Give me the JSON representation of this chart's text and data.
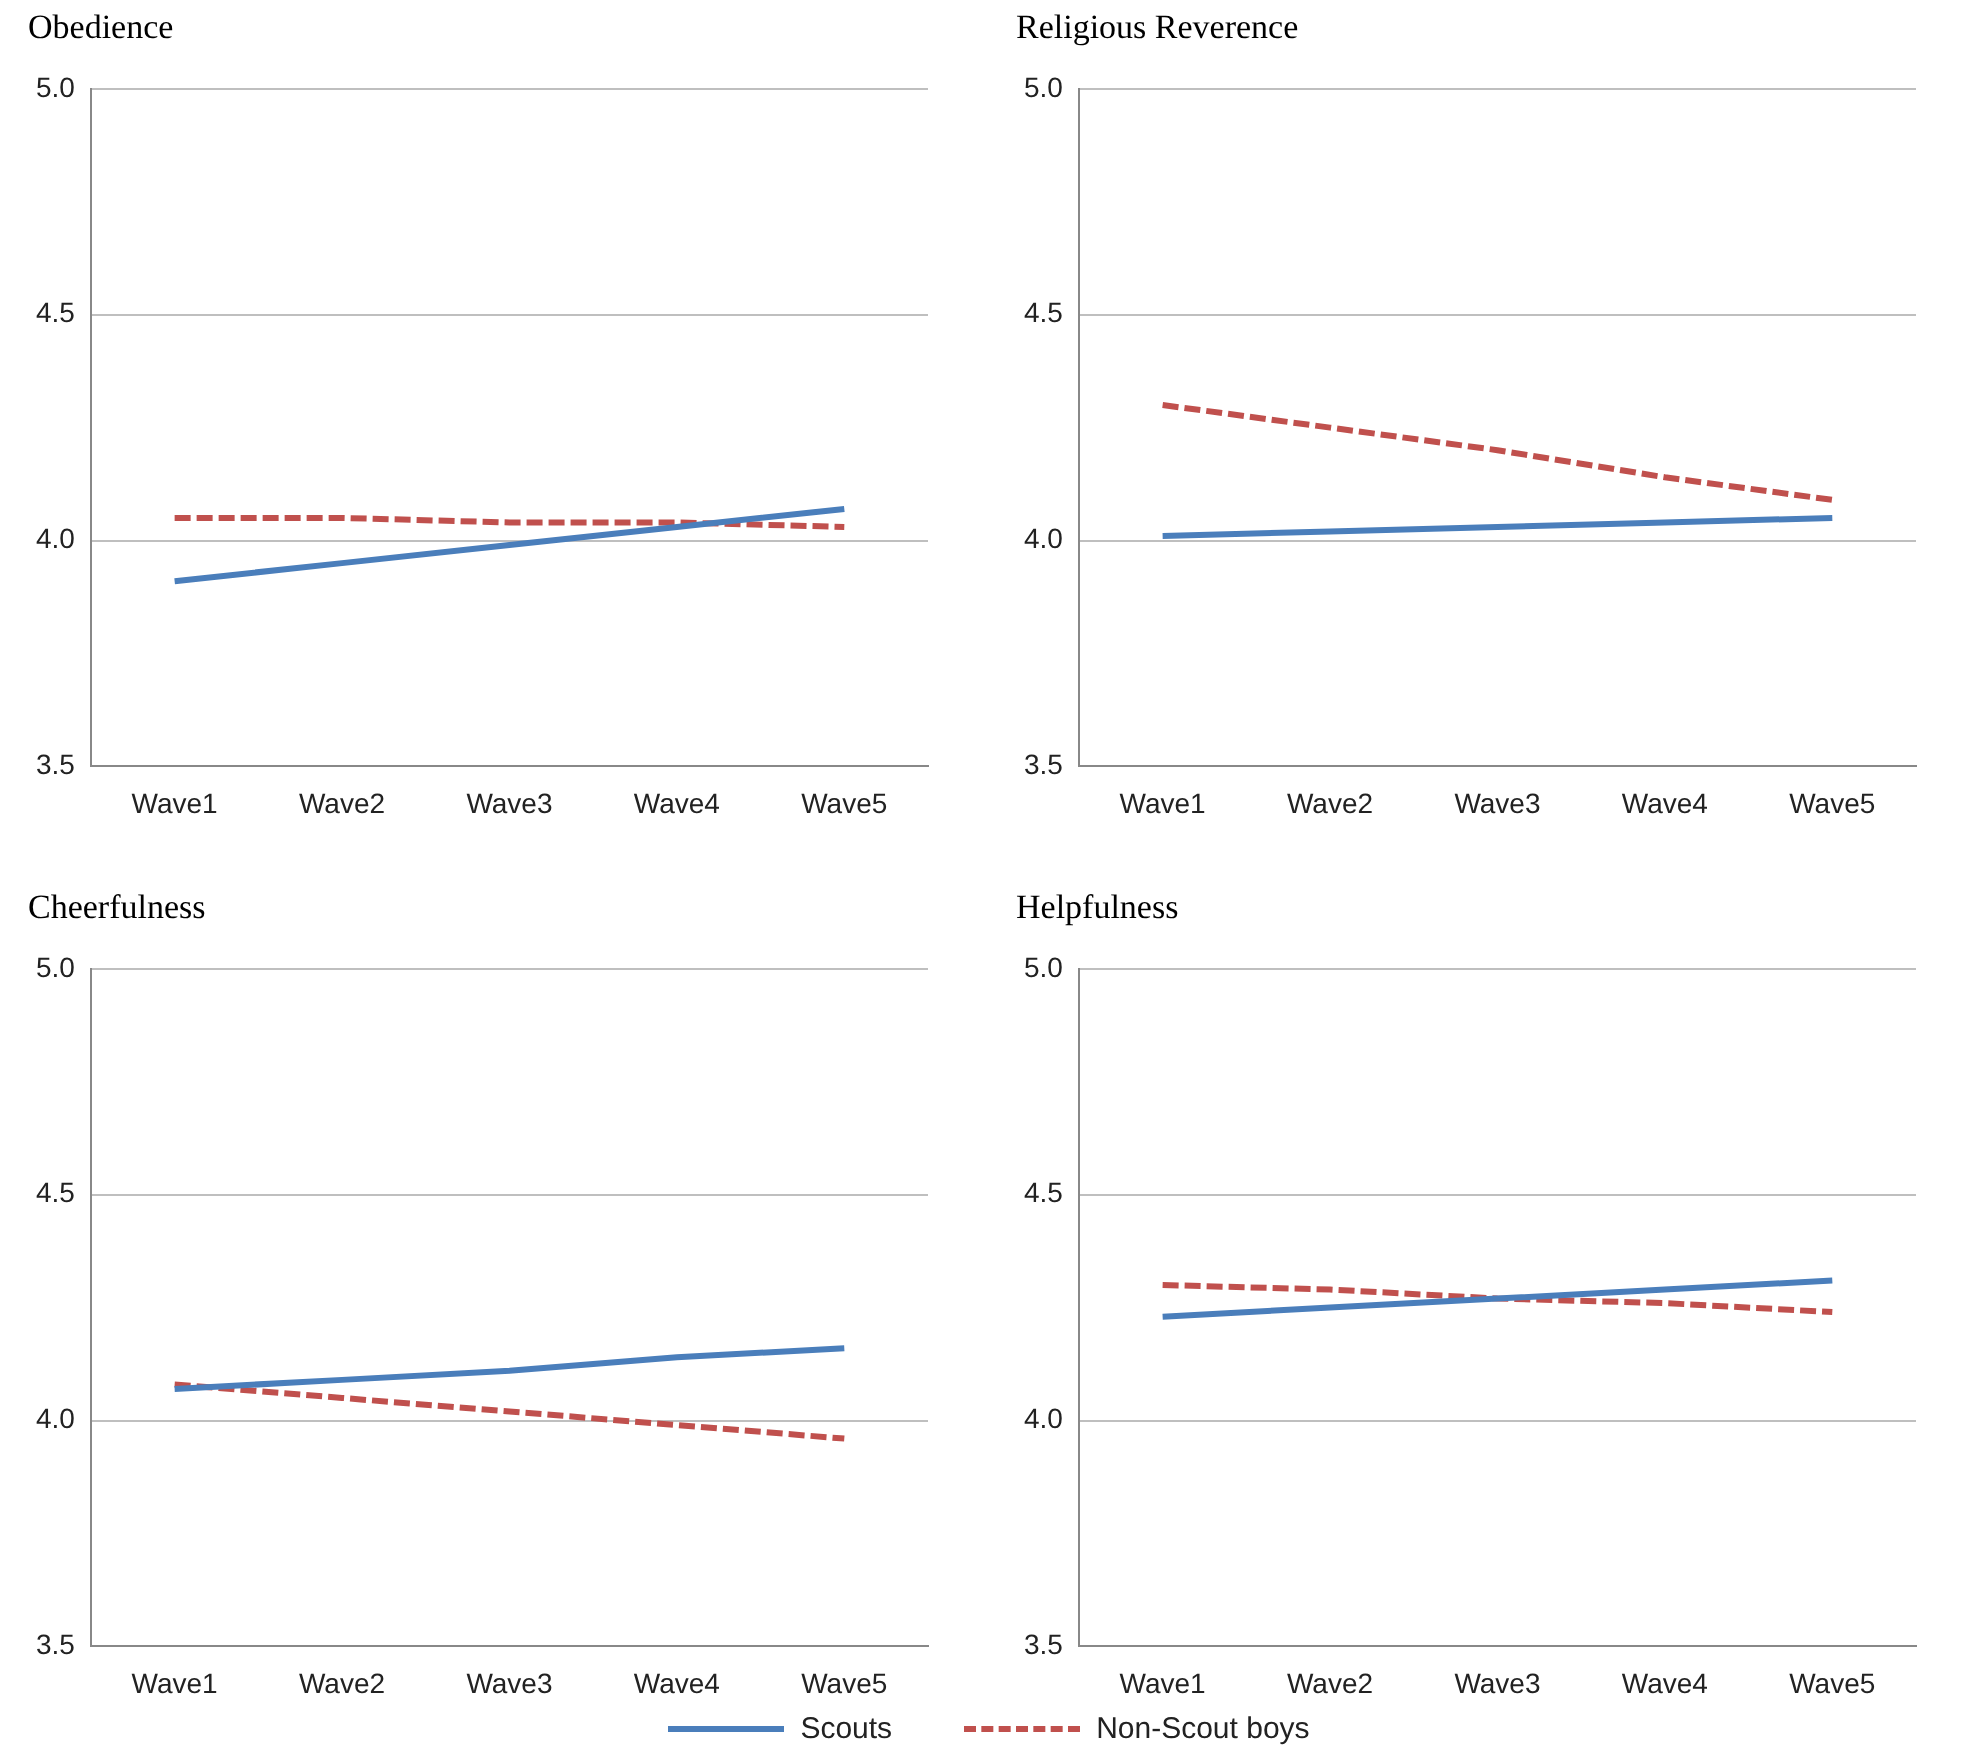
{
  "chart_data": [
    {
      "type": "line",
      "title": "Obedience",
      "categories": [
        "Wave1",
        "Wave2",
        "Wave3",
        "Wave4",
        "Wave5"
      ],
      "series": [
        {
          "name": "Scouts",
          "color": "#4a7ebb",
          "line_style": "solid",
          "values": [
            3.91,
            3.95,
            3.99,
            4.03,
            4.07
          ]
        },
        {
          "name": "Non-Scout boys",
          "color": "#c0504d",
          "line_style": "dashed",
          "values": [
            4.05,
            4.05,
            4.04,
            4.04,
            4.03
          ]
        }
      ],
      "ylim": [
        3.5,
        5.0
      ],
      "yticks": [
        {
          "value": 3.5,
          "label": "3.5"
        },
        {
          "value": 4.0,
          "label": "4.0"
        },
        {
          "value": 4.5,
          "label": "4.5"
        },
        {
          "value": 5.0,
          "label": "5.0"
        }
      ],
      "grid": "y",
      "legend": "bottom",
      "marker": "none"
    },
    {
      "type": "line",
      "title": "Religious Reverence",
      "categories": [
        "Wave1",
        "Wave2",
        "Wave3",
        "Wave4",
        "Wave5"
      ],
      "series": [
        {
          "name": "Scouts",
          "color": "#4a7ebb",
          "line_style": "solid",
          "values": [
            4.01,
            4.02,
            4.03,
            4.04,
            4.05
          ]
        },
        {
          "name": "Non-Scout boys",
          "color": "#c0504d",
          "line_style": "dashed",
          "values": [
            4.3,
            4.25,
            4.2,
            4.14,
            4.09
          ]
        }
      ],
      "ylim": [
        3.5,
        5.0
      ],
      "yticks": [
        {
          "value": 3.5,
          "label": "3.5"
        },
        {
          "value": 4.0,
          "label": "4.0"
        },
        {
          "value": 4.5,
          "label": "4.5"
        },
        {
          "value": 5.0,
          "label": "5.0"
        }
      ],
      "grid": "y",
      "legend": "bottom",
      "marker": "none"
    },
    {
      "type": "line",
      "title": "Cheerfulness",
      "categories": [
        "Wave1",
        "Wave2",
        "Wave3",
        "Wave4",
        "Wave5"
      ],
      "series": [
        {
          "name": "Scouts",
          "color": "#4a7ebb",
          "line_style": "solid",
          "values": [
            4.07,
            4.09,
            4.11,
            4.14,
            4.16
          ]
        },
        {
          "name": "Non-Scout boys",
          "color": "#c0504d",
          "line_style": "dashed",
          "values": [
            4.08,
            4.05,
            4.02,
            3.99,
            3.96
          ]
        }
      ],
      "ylim": [
        3.5,
        5.0
      ],
      "yticks": [
        {
          "value": 3.5,
          "label": "3.5"
        },
        {
          "value": 4.0,
          "label": "4.0"
        },
        {
          "value": 4.5,
          "label": "4.5"
        },
        {
          "value": 5.0,
          "label": "5.0"
        }
      ],
      "grid": "y",
      "legend": "bottom",
      "marker": "none"
    },
    {
      "type": "line",
      "title": "Helpfulness",
      "categories": [
        "Wave1",
        "Wave2",
        "Wave3",
        "Wave4",
        "Wave5"
      ],
      "series": [
        {
          "name": "Scouts",
          "color": "#4a7ebb",
          "line_style": "solid",
          "values": [
            4.23,
            4.25,
            4.27,
            4.29,
            4.31
          ]
        },
        {
          "name": "Non-Scout boys",
          "color": "#c0504d",
          "line_style": "dashed",
          "values": [
            4.3,
            4.29,
            4.27,
            4.26,
            4.24
          ]
        }
      ],
      "ylim": [
        3.5,
        5.0
      ],
      "yticks": [
        {
          "value": 3.5,
          "label": "3.5"
        },
        {
          "value": 4.0,
          "label": "4.0"
        },
        {
          "value": 4.5,
          "label": "4.5"
        },
        {
          "value": 5.0,
          "label": "5.0"
        }
      ],
      "grid": "y",
      "legend": "bottom",
      "marker": "none"
    }
  ]
}
